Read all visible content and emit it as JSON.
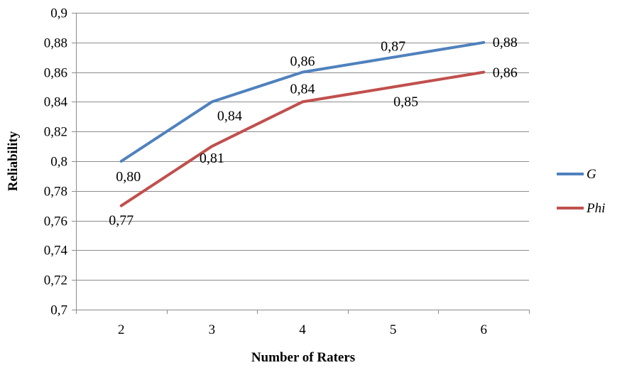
{
  "chart_data": {
    "type": "line",
    "title": "",
    "xlabel": "Number  of Raters",
    "ylabel": "Reliability",
    "categories": [
      "2",
      "3",
      "4",
      "5",
      "6"
    ],
    "ylim": [
      0.7,
      0.9
    ],
    "ytick_values": [
      0.7,
      0.72,
      0.74,
      0.76,
      0.78,
      0.8,
      0.82,
      0.84,
      0.86,
      0.88,
      0.9
    ],
    "ytick_labels": [
      "0,7",
      "0,72",
      "0,74",
      "0,76",
      "0,78",
      "0,8",
      "0,82",
      "0,84",
      "0,86",
      "0,88",
      "0,9"
    ],
    "grid": true,
    "legend_position": "right",
    "series": [
      {
        "name": "G",
        "color": "#4f81bd",
        "values": [
          0.8,
          0.84,
          0.86,
          0.87,
          0.88
        ],
        "data_labels": [
          "0,80",
          "0,84",
          "0,86",
          "0,87",
          "0,88"
        ]
      },
      {
        "name": "Phi",
        "color": "#c0504d",
        "values": [
          0.77,
          0.81,
          0.84,
          0.85,
          0.86
        ],
        "data_labels": [
          "0,77",
          "0,81",
          "0,84",
          "0,85",
          "0,86"
        ]
      }
    ]
  }
}
